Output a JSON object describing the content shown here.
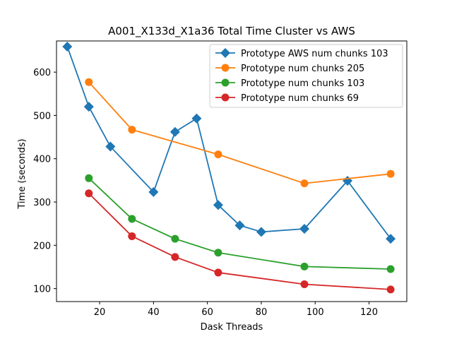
{
  "chart_data": {
    "type": "line",
    "title": "A001_X133d_X1a36 Total Time Cluster vs AWS",
    "xlabel": "Dask Threads",
    "ylabel": "Time (seconds)",
    "xlim": [
      4,
      134
    ],
    "ylim": [
      70,
      672
    ],
    "xticks": [
      20,
      40,
      60,
      80,
      100,
      120
    ],
    "yticks": [
      100,
      200,
      300,
      400,
      500,
      600
    ],
    "grid": false,
    "legend_position": "top-right",
    "series": [
      {
        "name": "Prototype AWS num chunks 103",
        "color": "#1f77b4",
        "marker": "diamond",
        "x": [
          8,
          16,
          24,
          40,
          48,
          56,
          64,
          72,
          80,
          96,
          112,
          128
        ],
        "y": [
          659,
          520,
          428,
          323,
          462,
          493,
          293,
          246,
          231,
          238,
          349,
          215
        ]
      },
      {
        "name": "Prototype num chunks 205",
        "color": "#ff7f0e",
        "marker": "circle",
        "x": [
          16,
          32,
          64,
          96,
          128
        ],
        "y": [
          577,
          467,
          410,
          343,
          365
        ]
      },
      {
        "name": "Prototype num chunks 103",
        "color": "#2ca02c",
        "marker": "circle",
        "x": [
          16,
          32,
          48,
          64,
          96,
          128
        ],
        "y": [
          355,
          261,
          215,
          183,
          151,
          145
        ]
      },
      {
        "name": "Prototype num chunks 69",
        "color": "#d62728",
        "marker": "circle",
        "x": [
          16,
          32,
          48,
          64,
          96,
          128
        ],
        "y": [
          320,
          221,
          173,
          137,
          110,
          98
        ]
      }
    ]
  }
}
